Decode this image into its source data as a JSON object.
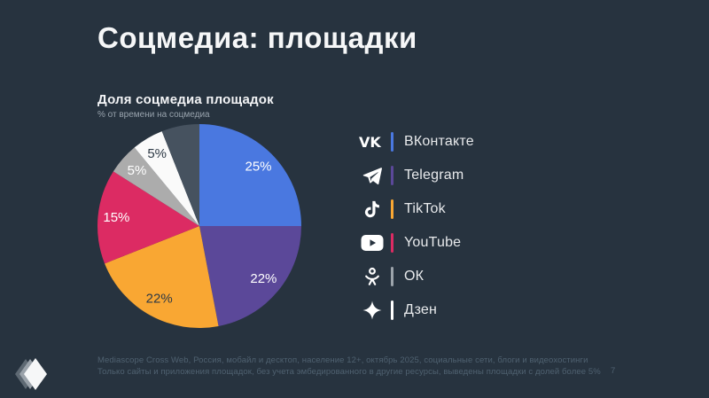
{
  "slide": {
    "title": "Соцмедиа: площадки",
    "page_number": "7",
    "background_color": "#27333F",
    "footnote_line1": "Mediascope Cross Web, Россия, мобайл и десктоп, население 12+, октябрь 2025, социальные сети, блоги и видеохостинги",
    "footnote_line2": "Только сайты и приложения площадок, без учета эмбедированного в другие ресурсы, выведены площадки с долей более 5%"
  },
  "chart": {
    "title": "Доля соцмедиа площадок",
    "subtitle": "% от времени на соцмедиа"
  },
  "chart_data": {
    "type": "pie",
    "title": "Доля соцмедиа площадок",
    "subtitle": "% от времени на соцмедиа",
    "unit": "%",
    "start_angle_deg": 0,
    "direction": "clockwise",
    "slices": [
      {
        "label": "ВКонтакте",
        "value": 25,
        "display": "25%",
        "color": "#4A78E0",
        "text_color": "#FFFFFF"
      },
      {
        "label": "Telegram",
        "value": 22,
        "display": "22%",
        "color": "#5B4899",
        "text_color": "#FFFFFF"
      },
      {
        "label": "TikTok",
        "value": 22,
        "display": "22%",
        "color": "#F9A733",
        "text_color": "#2E3A46"
      },
      {
        "label": "YouTube",
        "value": 15,
        "display": "15%",
        "color": "#DC2B63",
        "text_color": "#FFFFFF"
      },
      {
        "label": "ОК",
        "value": 5,
        "display": "5%",
        "color": "#ACACAC",
        "text_color": "#FFFFFF"
      },
      {
        "label": "Дзен",
        "value": 5,
        "display": "5%",
        "color": "#FAFAFA",
        "text_color": "#2E3A46"
      },
      {
        "label": "",
        "value": 6,
        "display": "",
        "color": "#46525F",
        "text_color": ""
      }
    ]
  },
  "legend": {
    "items": [
      {
        "label": "ВКонтакте",
        "icon": "vk-icon",
        "bar_color": "#4A78E0"
      },
      {
        "label": "Telegram",
        "icon": "telegram-icon",
        "bar_color": "#5B4899"
      },
      {
        "label": "TikTok",
        "icon": "tiktok-icon",
        "bar_color": "#F9A733"
      },
      {
        "label": "YouTube",
        "icon": "youtube-icon",
        "bar_color": "#DC2B63"
      },
      {
        "label": "ОК",
        "icon": "ok-icon",
        "bar_color": "#9CA4AB"
      },
      {
        "label": "Дзен",
        "icon": "zen-icon",
        "bar_color": "#FFFFFF"
      }
    ]
  }
}
